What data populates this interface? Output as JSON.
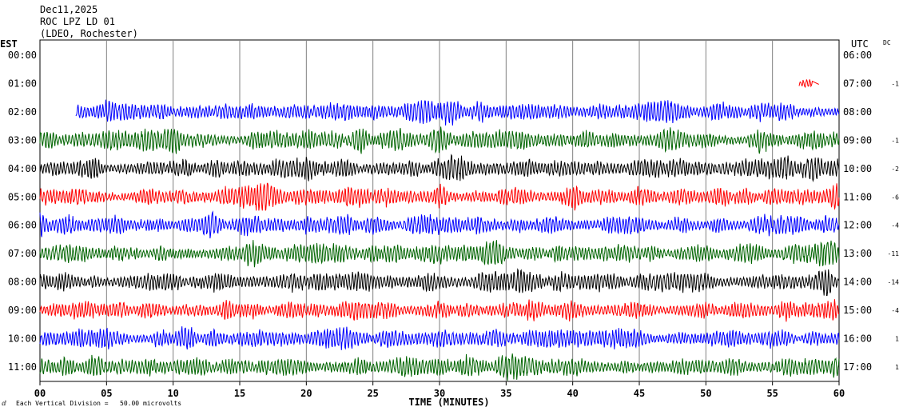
{
  "header": {
    "date": "Dec11,2025",
    "station": "ROC LPZ LD 01",
    "network": "(LDEO, Rochester)"
  },
  "left_zone": "EST",
  "right_zone": "UTC",
  "dc_header": "DC",
  "footer_note": "Each Vertical Division =   50.00 microvolts",
  "corner_mark": "ⅆ",
  "colors": {
    "blue": "#0000ff",
    "green": "#006400",
    "black": "#000000",
    "red": "#ff0000"
  },
  "chart_data": {
    "type": "line",
    "xlabel": "TIME (MINUTES)",
    "xlim": [
      0,
      60
    ],
    "x_ticks": [
      "00",
      "05",
      "10",
      "15",
      "20",
      "25",
      "30",
      "35",
      "40",
      "45",
      "50",
      "55",
      "60"
    ],
    "rows": [
      {
        "est": "00:00",
        "utc": "06:00",
        "dc": "",
        "color": "#0000ff",
        "start": null,
        "end": null,
        "amp": 0
      },
      {
        "est": "01:00",
        "utc": "07:00",
        "dc": "-1",
        "color": "#ff0000",
        "start": 57.0,
        "end": 58.0,
        "amp": 0.6
      },
      {
        "est": "02:00",
        "utc": "08:00",
        "dc": "",
        "color": "#0000ff",
        "start": 2.7,
        "end": 60,
        "amp": 1.0
      },
      {
        "est": "03:00",
        "utc": "09:00",
        "dc": "-1",
        "color": "#006400",
        "start": 0,
        "end": 60,
        "amp": 1.0
      },
      {
        "est": "04:00",
        "utc": "10:00",
        "dc": "-2",
        "color": "#000000",
        "start": 0,
        "end": 60,
        "amp": 1.0
      },
      {
        "est": "05:00",
        "utc": "11:00",
        "dc": "-6",
        "color": "#ff0000",
        "start": 0,
        "end": 60,
        "amp": 1.0
      },
      {
        "est": "06:00",
        "utc": "12:00",
        "dc": "-4",
        "color": "#0000ff",
        "start": 0,
        "end": 60,
        "amp": 1.0
      },
      {
        "est": "07:00",
        "utc": "13:00",
        "dc": "-11",
        "color": "#006400",
        "start": 0,
        "end": 60,
        "amp": 1.0
      },
      {
        "est": "08:00",
        "utc": "14:00",
        "dc": "-14",
        "color": "#000000",
        "start": 0,
        "end": 60,
        "amp": 1.0
      },
      {
        "est": "09:00",
        "utc": "15:00",
        "dc": "-4",
        "color": "#ff0000",
        "start": 0,
        "end": 60,
        "amp": 1.0
      },
      {
        "est": "10:00",
        "utc": "16:00",
        "dc": "1",
        "color": "#0000ff",
        "start": 0,
        "end": 60,
        "amp": 1.0
      },
      {
        "est": "11:00",
        "utc": "17:00",
        "dc": "1",
        "color": "#006400",
        "start": 0,
        "end": 60,
        "amp": 1.0
      }
    ]
  }
}
